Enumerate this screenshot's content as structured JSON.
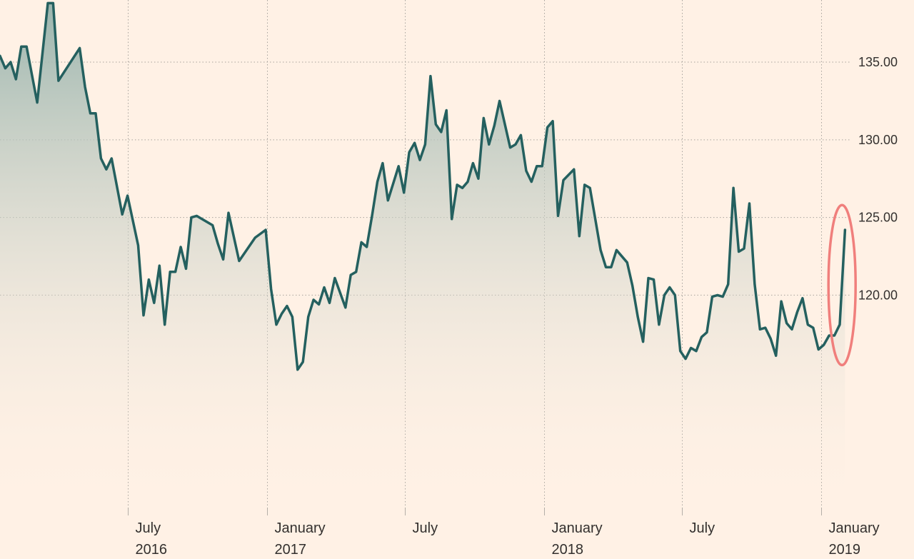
{
  "chart_data": {
    "type": "area",
    "title": "",
    "xlabel": "",
    "ylabel": "",
    "ylim": [
      106,
      139
    ],
    "xlim": [
      "2016-01-15",
      "2019-02-10"
    ],
    "grid": true,
    "y_ticks": [
      {
        "value": 120,
        "label": "120.00"
      },
      {
        "value": 125,
        "label": "125.00"
      },
      {
        "value": 130,
        "label": "130.00"
      },
      {
        "value": 135,
        "label": "135.00"
      }
    ],
    "x_ticks": [
      {
        "date": "2016-07-01",
        "label": [
          "July",
          "2016"
        ]
      },
      {
        "date": "2017-01-01",
        "label": [
          "January",
          "2017"
        ]
      },
      {
        "date": "2017-07-01",
        "label": [
          "July",
          ""
        ]
      },
      {
        "date": "2018-01-01",
        "label": [
          "January",
          "2018"
        ]
      },
      {
        "date": "2018-07-01",
        "label": [
          "July",
          ""
        ]
      },
      {
        "date": "2019-01-01",
        "label": [
          "January",
          "2019"
        ]
      }
    ],
    "series": [
      {
        "color": "#24605F",
        "fill_top": "#9BB5AE",
        "fill_bottom": "#FFF1E5",
        "points": [
          [
            "2016-01-15",
            135.4
          ],
          [
            "2016-01-22",
            134.6
          ],
          [
            "2016-01-29",
            135.0
          ],
          [
            "2016-02-05",
            133.9
          ],
          [
            "2016-02-12",
            136.0
          ],
          [
            "2016-02-19",
            136.0
          ],
          [
            "2016-03-04",
            132.4
          ],
          [
            "2016-03-18",
            138.8
          ],
          [
            "2016-03-25",
            138.8
          ],
          [
            "2016-04-01",
            133.8
          ],
          [
            "2016-04-29",
            135.9
          ],
          [
            "2016-05-06",
            133.4
          ],
          [
            "2016-05-13",
            131.7
          ],
          [
            "2016-05-20",
            131.7
          ],
          [
            "2016-05-27",
            128.8
          ],
          [
            "2016-06-03",
            128.1
          ],
          [
            "2016-06-10",
            128.8
          ],
          [
            "2016-06-24",
            125.2
          ],
          [
            "2016-07-01",
            126.4
          ],
          [
            "2016-07-15",
            123.2
          ],
          [
            "2016-07-22",
            118.7
          ],
          [
            "2016-07-29",
            121.0
          ],
          [
            "2016-08-05",
            119.5
          ],
          [
            "2016-08-12",
            121.9
          ],
          [
            "2016-08-19",
            118.1
          ],
          [
            "2016-08-26",
            121.5
          ],
          [
            "2016-09-02",
            121.5
          ],
          [
            "2016-09-09",
            123.1
          ],
          [
            "2016-09-16",
            121.7
          ],
          [
            "2016-09-23",
            125.0
          ],
          [
            "2016-09-30",
            125.1
          ],
          [
            "2016-10-21",
            124.5
          ],
          [
            "2016-10-28",
            123.3
          ],
          [
            "2016-11-04",
            122.3
          ],
          [
            "2016-11-11",
            125.3
          ],
          [
            "2016-11-25",
            122.2
          ],
          [
            "2016-12-16",
            123.7
          ],
          [
            "2016-12-30",
            124.2
          ],
          [
            "2017-01-06",
            120.4
          ],
          [
            "2017-01-13",
            118.1
          ],
          [
            "2017-01-20",
            118.8
          ],
          [
            "2017-01-27",
            119.3
          ],
          [
            "2017-02-03",
            118.6
          ],
          [
            "2017-02-10",
            115.2
          ],
          [
            "2017-02-17",
            115.7
          ],
          [
            "2017-02-24",
            118.6
          ],
          [
            "2017-03-03",
            119.7
          ],
          [
            "2017-03-10",
            119.4
          ],
          [
            "2017-03-17",
            120.5
          ],
          [
            "2017-03-24",
            119.5
          ],
          [
            "2017-03-31",
            121.1
          ],
          [
            "2017-04-14",
            119.2
          ],
          [
            "2017-04-21",
            121.3
          ],
          [
            "2017-04-28",
            121.5
          ],
          [
            "2017-05-05",
            123.4
          ],
          [
            "2017-05-12",
            123.1
          ],
          [
            "2017-05-19",
            125.1
          ],
          [
            "2017-05-26",
            127.3
          ],
          [
            "2017-06-02",
            128.5
          ],
          [
            "2017-06-09",
            126.1
          ],
          [
            "2017-06-23",
            128.3
          ],
          [
            "2017-06-30",
            126.6
          ],
          [
            "2017-07-07",
            129.2
          ],
          [
            "2017-07-14",
            129.8
          ],
          [
            "2017-07-21",
            128.7
          ],
          [
            "2017-07-28",
            129.7
          ],
          [
            "2017-08-04",
            134.1
          ],
          [
            "2017-08-11",
            131.0
          ],
          [
            "2017-08-18",
            130.5
          ],
          [
            "2017-08-25",
            131.9
          ],
          [
            "2017-09-01",
            124.9
          ],
          [
            "2017-09-08",
            127.1
          ],
          [
            "2017-09-15",
            126.9
          ],
          [
            "2017-09-22",
            127.3
          ],
          [
            "2017-09-29",
            128.5
          ],
          [
            "2017-10-06",
            127.5
          ],
          [
            "2017-10-13",
            131.4
          ],
          [
            "2017-10-20",
            129.7
          ],
          [
            "2017-10-27",
            130.9
          ],
          [
            "2017-11-03",
            132.5
          ],
          [
            "2017-11-17",
            129.5
          ],
          [
            "2017-11-24",
            129.7
          ],
          [
            "2017-12-01",
            130.3
          ],
          [
            "2017-12-08",
            128.0
          ],
          [
            "2017-12-15",
            127.3
          ],
          [
            "2017-12-22",
            128.3
          ],
          [
            "2017-12-29",
            128.3
          ],
          [
            "2018-01-05",
            130.8
          ],
          [
            "2018-01-12",
            131.2
          ],
          [
            "2018-01-19",
            125.1
          ],
          [
            "2018-01-26",
            127.4
          ],
          [
            "2018-02-09",
            128.1
          ],
          [
            "2018-02-16",
            123.8
          ],
          [
            "2018-02-23",
            127.1
          ],
          [
            "2018-03-02",
            126.9
          ],
          [
            "2018-03-16",
            122.9
          ],
          [
            "2018-03-23",
            121.8
          ],
          [
            "2018-03-30",
            121.8
          ],
          [
            "2018-04-06",
            122.9
          ],
          [
            "2018-04-20",
            122.1
          ],
          [
            "2018-04-27",
            120.6
          ],
          [
            "2018-05-04",
            118.6
          ],
          [
            "2018-05-11",
            117.0
          ],
          [
            "2018-05-18",
            121.1
          ],
          [
            "2018-05-25",
            121.0
          ],
          [
            "2018-06-01",
            118.1
          ],
          [
            "2018-06-08",
            120.0
          ],
          [
            "2018-06-15",
            120.5
          ],
          [
            "2018-06-22",
            120.0
          ],
          [
            "2018-06-29",
            116.4
          ],
          [
            "2018-07-06",
            115.9
          ],
          [
            "2018-07-13",
            116.6
          ],
          [
            "2018-07-20",
            116.4
          ],
          [
            "2018-07-27",
            117.3
          ],
          [
            "2018-08-03",
            117.6
          ],
          [
            "2018-08-10",
            119.9
          ],
          [
            "2018-08-17",
            120.0
          ],
          [
            "2018-08-24",
            119.9
          ],
          [
            "2018-08-31",
            120.7
          ],
          [
            "2018-09-07",
            126.9
          ],
          [
            "2018-09-14",
            122.8
          ],
          [
            "2018-09-21",
            123.0
          ],
          [
            "2018-09-28",
            125.9
          ],
          [
            "2018-10-05",
            120.7
          ],
          [
            "2018-10-12",
            117.8
          ],
          [
            "2018-10-19",
            117.9
          ],
          [
            "2018-10-26",
            117.2
          ],
          [
            "2018-11-02",
            116.1
          ],
          [
            "2018-11-09",
            119.6
          ],
          [
            "2018-11-16",
            118.2
          ],
          [
            "2018-11-23",
            117.8
          ],
          [
            "2018-11-30",
            118.9
          ],
          [
            "2018-12-07",
            119.8
          ],
          [
            "2018-12-14",
            118.1
          ],
          [
            "2018-12-21",
            117.9
          ],
          [
            "2018-12-28",
            116.5
          ],
          [
            "2019-01-04",
            116.8
          ],
          [
            "2019-01-11",
            117.4
          ],
          [
            "2019-01-18",
            117.4
          ],
          [
            "2019-01-25",
            118.1
          ],
          [
            "2019-02-01",
            124.2
          ]
        ]
      }
    ],
    "annotations": [
      {
        "type": "ellipse",
        "color": "#F07F7C",
        "around_date": "2019-01-28",
        "y_range": [
          115.5,
          125.8
        ]
      }
    ]
  }
}
